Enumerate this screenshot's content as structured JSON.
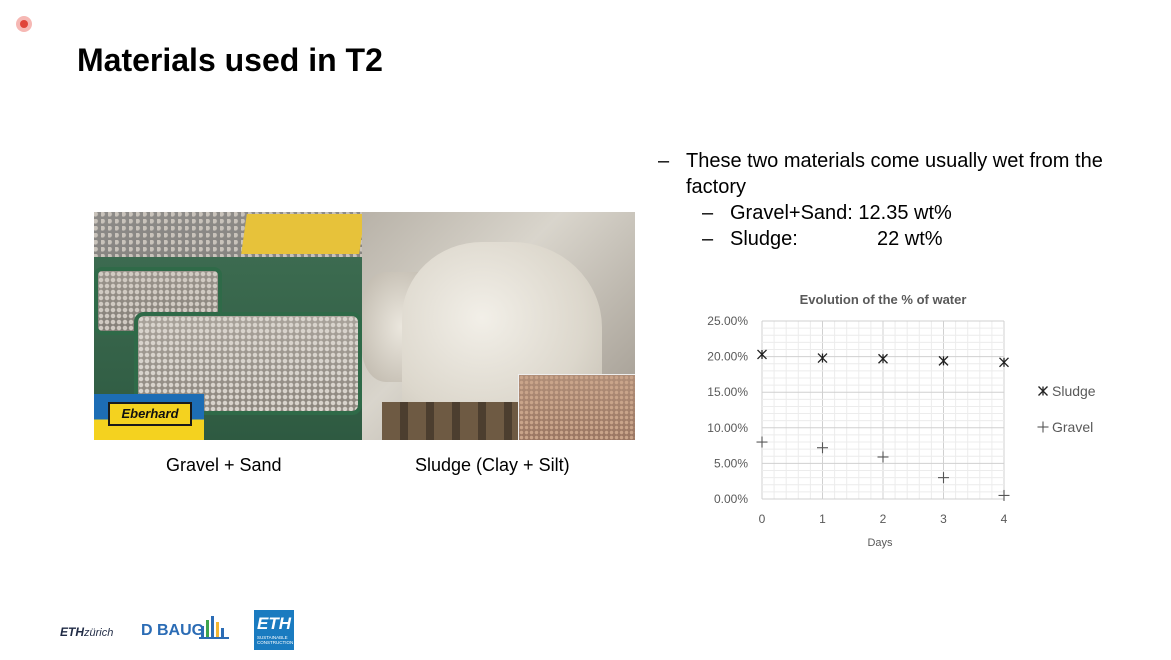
{
  "slide": {
    "title": "Materials used in T2",
    "captions": {
      "gravel": "Gravel + Sand",
      "sludge": "Sludge (Clay + Silt)"
    },
    "photo_labels": {
      "brand": "Eberhard"
    },
    "bullets": {
      "main_dash": "–",
      "main_text": "These two materials come usually wet from the factory",
      "items": [
        {
          "dash": "–",
          "label": "Gravel+Sand: 12.35 wt%"
        },
        {
          "dash": "–",
          "label": "Sludge:",
          "value": "22 wt%"
        }
      ]
    },
    "logos": {
      "eth": "ETH zürich",
      "eth_eth": "ETH",
      "eth_zurich": "zürich",
      "dbaug": "D BAUG",
      "ethsc_big": "ETH",
      "ethsc_small": "SUSTAINABLE CONSTRUCTION"
    }
  },
  "chart_data": {
    "type": "scatter",
    "title": "Evolution of the % of water",
    "xlabel": "Days",
    "ylabel": "",
    "x_ticks": [
      "0",
      "1",
      "2",
      "3",
      "4"
    ],
    "y_ticks": [
      "0.00%",
      "5.00%",
      "10.00%",
      "15.00%",
      "20.00%",
      "25.00%"
    ],
    "xlim": [
      0,
      4
    ],
    "ylim": [
      0,
      25
    ],
    "grid": true,
    "legend_position": "right",
    "series": [
      {
        "name": "Sludge",
        "marker": "asterisk",
        "x": [
          0,
          1,
          2,
          3,
          4
        ],
        "y": [
          20.3,
          19.8,
          19.7,
          19.4,
          19.2
        ]
      },
      {
        "name": "Gravel",
        "marker": "plus",
        "x": [
          0,
          1,
          2,
          3,
          4
        ],
        "y": [
          8.0,
          7.2,
          5.9,
          3.0,
          0.5
        ]
      }
    ]
  }
}
